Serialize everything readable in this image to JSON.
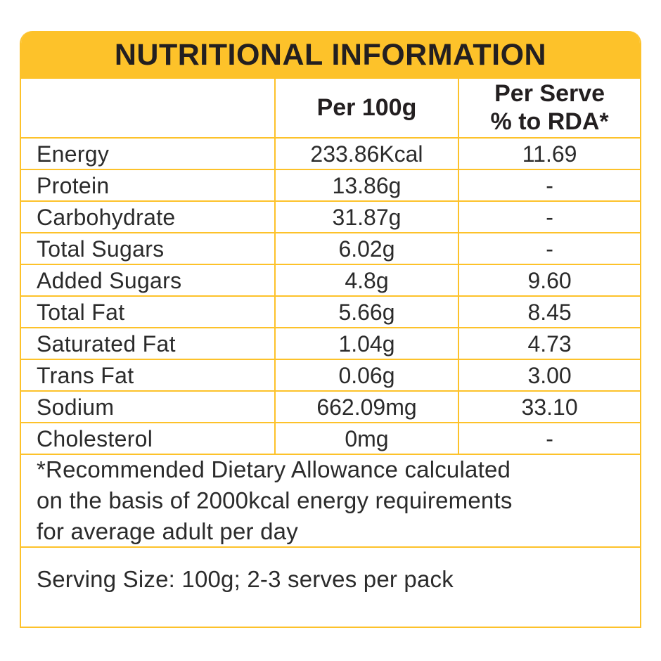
{
  "header": {
    "title": "NUTRITIONAL INFORMATION"
  },
  "table": {
    "columns": [
      {
        "label": ""
      },
      {
        "label": "Per 100g"
      },
      {
        "label": "Per Serve % to RDA*",
        "lines": [
          "Per Serve",
          "% to RDA*"
        ]
      }
    ],
    "rows": [
      {
        "nutrient": "Energy",
        "per_100g": "233.86Kcal",
        "per_serve_rda": "11.69"
      },
      {
        "nutrient": "Protein",
        "per_100g": "13.86g",
        "per_serve_rda": "-"
      },
      {
        "nutrient": "Carbohydrate",
        "per_100g": "31.87g",
        "per_serve_rda": "-"
      },
      {
        "nutrient": "Total Sugars",
        "per_100g": "6.02g",
        "per_serve_rda": "-"
      },
      {
        "nutrient": "Added Sugars",
        "per_100g": "4.8g",
        "per_serve_rda": "9.60"
      },
      {
        "nutrient": "Total Fat",
        "per_100g": "5.66g",
        "per_serve_rda": "8.45"
      },
      {
        "nutrient": "Saturated Fat",
        "per_100g": "1.04g",
        "per_serve_rda": "4.73"
      },
      {
        "nutrient": "Trans Fat",
        "per_100g": "0.06g",
        "per_serve_rda": "3.00"
      },
      {
        "nutrient": "Sodium",
        "per_100g": "662.09mg",
        "per_serve_rda": "33.10"
      },
      {
        "nutrient": "Cholesterol",
        "per_100g": "0mg",
        "per_serve_rda": "-"
      }
    ]
  },
  "notes": {
    "rda_footnote": "*Recommended Dietary Allowance calculated on the basis of 2000kcal energy requirements for average adult per day",
    "rda_footnote_lines": [
      "*Recommended Dietary Allowance calculated",
      "on the basis of 2000kcal energy requirements",
      "for average adult per day"
    ],
    "serving_info": "Serving Size: 100g; 2-3 serves per pack"
  },
  "colors": {
    "accent_yellow": "#FDC22A",
    "title_text": "#231F20",
    "body_text": "#2B2B2B",
    "background": "#FFFFFF"
  }
}
